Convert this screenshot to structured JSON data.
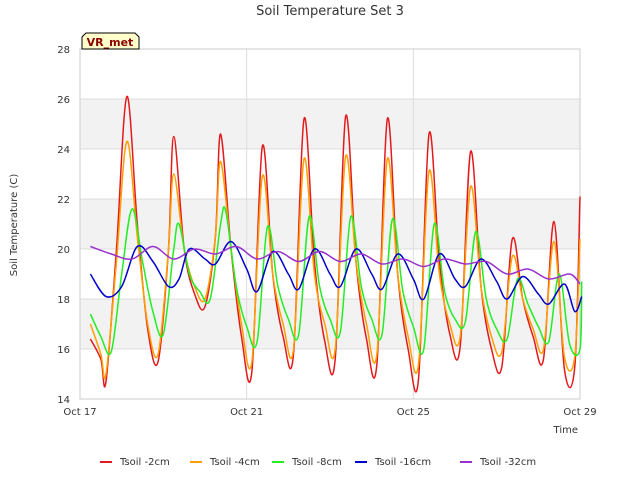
{
  "chart_data": {
    "type": "line",
    "title": "Soil Temperature Set 3",
    "xlabel": "Time",
    "ylabel": "Soil Temperature (C)",
    "badge": "VR_met",
    "xlim": [
      "Oct 17",
      "Oct 29"
    ],
    "ylim": [
      14,
      28
    ],
    "x_ticks": [
      "Oct 17",
      "Oct 21",
      "Oct 25",
      "Oct 29"
    ],
    "y_ticks": [
      14,
      16,
      18,
      20,
      22,
      24,
      26,
      28
    ],
    "grid": true,
    "legend_position": "bottom",
    "series": [
      {
        "name": "Tsoil -2cm",
        "color": "#e31a1c",
        "points": [
          [
            "2024-10-17 06:00",
            16.4
          ],
          [
            "2024-10-17 12:00",
            15.6
          ],
          [
            "2024-10-17 15:00",
            14.7
          ],
          [
            "2024-10-17 21:00",
            20.0
          ],
          [
            "2024-10-18 03:00",
            26.1
          ],
          [
            "2024-10-18 09:00",
            21.0
          ],
          [
            "2024-10-18 15:00",
            16.8
          ],
          [
            "2024-10-18 21:00",
            15.5
          ],
          [
            "2024-10-19 03:00",
            20.0
          ],
          [
            "2024-10-19 06:00",
            24.5
          ],
          [
            "2024-10-19 12:00",
            20.0
          ],
          [
            "2024-10-19 18:00",
            18.2
          ],
          [
            "2024-10-20 00:00",
            17.7
          ],
          [
            "2024-10-20 06:00",
            20.5
          ],
          [
            "2024-10-20 09:00",
            24.6
          ],
          [
            "2024-10-20 15:00",
            20.0
          ],
          [
            "2024-10-20 21:00",
            16.5
          ],
          [
            "2024-10-21 03:00",
            15.1
          ],
          [
            "2024-10-21 09:00",
            24.1
          ],
          [
            "2024-10-21 15:00",
            19.0
          ],
          [
            "2024-10-21 21:00",
            16.5
          ],
          [
            "2024-10-22 03:00",
            15.8
          ],
          [
            "2024-10-22 09:00",
            25.2
          ],
          [
            "2024-10-22 15:00",
            19.5
          ],
          [
            "2024-10-22 21:00",
            16.3
          ],
          [
            "2024-10-23 03:00",
            15.6
          ],
          [
            "2024-10-23 09:00",
            25.3
          ],
          [
            "2024-10-23 15:00",
            19.5
          ],
          [
            "2024-10-23 21:00",
            16.4
          ],
          [
            "2024-10-24 03:00",
            15.4
          ],
          [
            "2024-10-24 09:00",
            25.2
          ],
          [
            "2024-10-24 15:00",
            19.0
          ],
          [
            "2024-10-24 21:00",
            16.0
          ],
          [
            "2024-10-25 03:00",
            14.8
          ],
          [
            "2024-10-25 09:00",
            24.6
          ],
          [
            "2024-10-25 15:00",
            19.5
          ],
          [
            "2024-10-25 21:00",
            16.6
          ],
          [
            "2024-10-26 03:00",
            16.1
          ],
          [
            "2024-10-26 09:00",
            23.9
          ],
          [
            "2024-10-26 15:00",
            18.5
          ],
          [
            "2024-10-26 21:00",
            16.0
          ],
          [
            "2024-10-27 03:00",
            15.3
          ],
          [
            "2024-10-27 09:00",
            20.4
          ],
          [
            "2024-10-27 15:00",
            18.0
          ],
          [
            "2024-10-27 21:00",
            16.5
          ],
          [
            "2024-10-28 03:00",
            15.6
          ],
          [
            "2024-10-28 09:00",
            21.1
          ],
          [
            "2024-10-28 15:00",
            15.2
          ],
          [
            "2024-10-28 21:00",
            15.3
          ],
          [
            "2024-10-29 00:00",
            22.1
          ]
        ]
      },
      {
        "name": "Tsoil -4cm",
        "color": "#ff9f00",
        "points": [
          [
            "2024-10-17 06:00",
            17.0
          ],
          [
            "2024-10-17 12:00",
            15.8
          ],
          [
            "2024-10-17 15:00",
            15.0
          ],
          [
            "2024-10-17 21:00",
            19.5
          ],
          [
            "2024-10-18 03:00",
            24.3
          ],
          [
            "2024-10-18 09:00",
            20.5
          ],
          [
            "2024-10-18 15:00",
            17.0
          ],
          [
            "2024-10-18 21:00",
            15.8
          ],
          [
            "2024-10-19 03:00",
            20.0
          ],
          [
            "2024-10-19 06:00",
            23.0
          ],
          [
            "2024-10-19 12:00",
            20.0
          ],
          [
            "2024-10-19 18:00",
            18.5
          ],
          [
            "2024-10-20 00:00",
            18.0
          ],
          [
            "2024-10-20 06:00",
            20.5
          ],
          [
            "2024-10-20 09:00",
            23.5
          ],
          [
            "2024-10-20 15:00",
            20.0
          ],
          [
            "2024-10-20 21:00",
            17.0
          ],
          [
            "2024-10-21 03:00",
            15.5
          ],
          [
            "2024-10-21 09:00",
            22.9
          ],
          [
            "2024-10-21 15:00",
            19.0
          ],
          [
            "2024-10-21 21:00",
            17.0
          ],
          [
            "2024-10-22 03:00",
            16.0
          ],
          [
            "2024-10-22 09:00",
            23.6
          ],
          [
            "2024-10-22 15:00",
            19.0
          ],
          [
            "2024-10-22 21:00",
            17.0
          ],
          [
            "2024-10-23 03:00",
            16.0
          ],
          [
            "2024-10-23 09:00",
            23.7
          ],
          [
            "2024-10-23 15:00",
            19.5
          ],
          [
            "2024-10-23 21:00",
            17.0
          ],
          [
            "2024-10-24 03:00",
            15.8
          ],
          [
            "2024-10-24 09:00",
            23.6
          ],
          [
            "2024-10-24 15:00",
            19.0
          ],
          [
            "2024-10-24 21:00",
            16.5
          ],
          [
            "2024-10-25 03:00",
            15.4
          ],
          [
            "2024-10-25 09:00",
            23.1
          ],
          [
            "2024-10-25 15:00",
            19.0
          ],
          [
            "2024-10-25 21:00",
            17.0
          ],
          [
            "2024-10-26 03:00",
            16.5
          ],
          [
            "2024-10-26 09:00",
            22.5
          ],
          [
            "2024-10-26 15:00",
            18.5
          ],
          [
            "2024-10-26 21:00",
            16.5
          ],
          [
            "2024-10-27 03:00",
            15.9
          ],
          [
            "2024-10-27 09:00",
            19.7
          ],
          [
            "2024-10-27 15:00",
            18.0
          ],
          [
            "2024-10-27 21:00",
            16.8
          ],
          [
            "2024-10-28 03:00",
            16.0
          ],
          [
            "2024-10-28 09:00",
            20.3
          ],
          [
            "2024-10-28 15:00",
            15.7
          ],
          [
            "2024-10-28 21:00",
            15.7
          ],
          [
            "2024-10-29 00:00",
            20.4
          ]
        ]
      },
      {
        "name": "Tsoil -8cm",
        "color": "#22ee22",
        "points": [
          [
            "2024-10-17 06:00",
            17.4
          ],
          [
            "2024-10-17 12:00",
            16.5
          ],
          [
            "2024-10-17 18:00",
            15.9
          ],
          [
            "2024-10-18 00:00",
            19.0
          ],
          [
            "2024-10-18 06:00",
            21.6
          ],
          [
            "2024-10-18 12:00",
            19.5
          ],
          [
            "2024-10-18 18:00",
            17.5
          ],
          [
            "2024-10-19 00:00",
            16.6
          ],
          [
            "2024-10-19 06:00",
            20.0
          ],
          [
            "2024-10-19 09:00",
            21.0
          ],
          [
            "2024-10-19 15:00",
            19.0
          ],
          [
            "2024-10-19 21:00",
            18.3
          ],
          [
            "2024-10-20 03:00",
            18.0
          ],
          [
            "2024-10-20 09:00",
            21.0
          ],
          [
            "2024-10-20 12:00",
            21.5
          ],
          [
            "2024-10-20 18:00",
            18.5
          ],
          [
            "2024-10-21 00:00",
            16.9
          ],
          [
            "2024-10-21 06:00",
            16.3
          ],
          [
            "2024-10-21 12:00",
            20.9
          ],
          [
            "2024-10-21 18:00",
            18.5
          ],
          [
            "2024-10-22 00:00",
            17.2
          ],
          [
            "2024-10-22 06:00",
            16.6
          ],
          [
            "2024-10-22 12:00",
            21.3
          ],
          [
            "2024-10-22 18:00",
            18.5
          ],
          [
            "2024-10-23 00:00",
            17.2
          ],
          [
            "2024-10-23 06:00",
            16.7
          ],
          [
            "2024-10-23 12:00",
            21.3
          ],
          [
            "2024-10-23 18:00",
            18.5
          ],
          [
            "2024-10-24 00:00",
            17.2
          ],
          [
            "2024-10-24 06:00",
            16.6
          ],
          [
            "2024-10-24 12:00",
            21.2
          ],
          [
            "2024-10-24 18:00",
            18.3
          ],
          [
            "2024-10-25 00:00",
            16.9
          ],
          [
            "2024-10-25 06:00",
            16.0
          ],
          [
            "2024-10-25 12:00",
            21.0
          ],
          [
            "2024-10-25 18:00",
            18.3
          ],
          [
            "2024-10-26 00:00",
            17.2
          ],
          [
            "2024-10-26 06:00",
            17.1
          ],
          [
            "2024-10-26 12:00",
            20.7
          ],
          [
            "2024-10-26 18:00",
            18.0
          ],
          [
            "2024-10-27 00:00",
            16.8
          ],
          [
            "2024-10-27 06:00",
            16.4
          ],
          [
            "2024-10-27 12:00",
            18.8
          ],
          [
            "2024-10-27 18:00",
            17.8
          ],
          [
            "2024-10-28 00:00",
            16.9
          ],
          [
            "2024-10-28 06:00",
            16.3
          ],
          [
            "2024-10-28 12:00",
            19.0
          ],
          [
            "2024-10-28 18:00",
            16.2
          ],
          [
            "2024-10-29 00:00",
            16.0
          ],
          [
            "2024-10-29 01:00",
            18.7
          ]
        ]
      },
      {
        "name": "Tsoil -16cm",
        "color": "#0000cc",
        "points": [
          [
            "2024-10-17 06:00",
            19.0
          ],
          [
            "2024-10-17 15:00",
            18.1
          ],
          [
            "2024-10-18 00:00",
            18.5
          ],
          [
            "2024-10-18 09:00",
            20.1
          ],
          [
            "2024-10-18 18:00",
            19.5
          ],
          [
            "2024-10-19 03:00",
            18.5
          ],
          [
            "2024-10-19 09:00",
            18.8
          ],
          [
            "2024-10-19 15:00",
            20.0
          ],
          [
            "2024-10-20 00:00",
            19.6
          ],
          [
            "2024-10-20 06:00",
            19.4
          ],
          [
            "2024-10-20 15:00",
            20.3
          ],
          [
            "2024-10-21 00:00",
            19.2
          ],
          [
            "2024-10-21 06:00",
            18.3
          ],
          [
            "2024-10-21 15:00",
            19.9
          ],
          [
            "2024-10-22 00:00",
            19.0
          ],
          [
            "2024-10-22 06:00",
            18.4
          ],
          [
            "2024-10-22 15:00",
            20.0
          ],
          [
            "2024-10-23 00:00",
            19.0
          ],
          [
            "2024-10-23 06:00",
            18.5
          ],
          [
            "2024-10-23 15:00",
            20.0
          ],
          [
            "2024-10-24 00:00",
            19.0
          ],
          [
            "2024-10-24 06:00",
            18.4
          ],
          [
            "2024-10-24 15:00",
            19.8
          ],
          [
            "2024-10-25 00:00",
            18.8
          ],
          [
            "2024-10-25 06:00",
            18.0
          ],
          [
            "2024-10-25 15:00",
            19.8
          ],
          [
            "2024-10-26 00:00",
            18.8
          ],
          [
            "2024-10-26 06:00",
            18.5
          ],
          [
            "2024-10-26 15:00",
            19.6
          ],
          [
            "2024-10-27 00:00",
            18.7
          ],
          [
            "2024-10-27 06:00",
            18.0
          ],
          [
            "2024-10-27 15:00",
            18.9
          ],
          [
            "2024-10-28 00:00",
            18.2
          ],
          [
            "2024-10-28 06:00",
            17.8
          ],
          [
            "2024-10-28 15:00",
            18.6
          ],
          [
            "2024-10-28 21:00",
            17.5
          ],
          [
            "2024-10-29 01:00",
            18.1
          ]
        ]
      },
      {
        "name": "Tsoil -32cm",
        "color": "#9932cc",
        "points": [
          [
            "2024-10-17 06:00",
            20.1
          ],
          [
            "2024-10-17 18:00",
            19.8
          ],
          [
            "2024-10-18 06:00",
            19.6
          ],
          [
            "2024-10-18 18:00",
            20.1
          ],
          [
            "2024-10-19 06:00",
            19.6
          ],
          [
            "2024-10-19 18:00",
            20.0
          ],
          [
            "2024-10-20 06:00",
            19.8
          ],
          [
            "2024-10-20 18:00",
            20.1
          ],
          [
            "2024-10-21 06:00",
            19.6
          ],
          [
            "2024-10-21 18:00",
            19.9
          ],
          [
            "2024-10-22 06:00",
            19.5
          ],
          [
            "2024-10-22 18:00",
            19.9
          ],
          [
            "2024-10-23 06:00",
            19.5
          ],
          [
            "2024-10-23 18:00",
            19.8
          ],
          [
            "2024-10-24 06:00",
            19.4
          ],
          [
            "2024-10-24 18:00",
            19.6
          ],
          [
            "2024-10-25 06:00",
            19.3
          ],
          [
            "2024-10-25 18:00",
            19.6
          ],
          [
            "2024-10-26 06:00",
            19.4
          ],
          [
            "2024-10-26 18:00",
            19.5
          ],
          [
            "2024-10-27 06:00",
            19.0
          ],
          [
            "2024-10-27 18:00",
            19.2
          ],
          [
            "2024-10-28 06:00",
            18.8
          ],
          [
            "2024-10-28 18:00",
            19.0
          ],
          [
            "2024-10-29 00:00",
            18.6
          ]
        ]
      }
    ]
  }
}
